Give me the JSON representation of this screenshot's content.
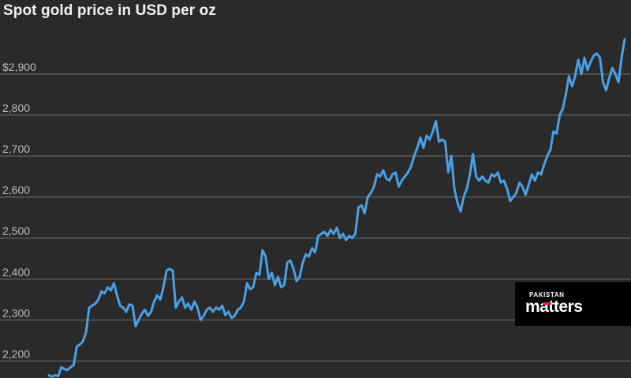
{
  "chart_data": {
    "type": "line",
    "title": "Spot gold price in USD per oz",
    "xlabel": "",
    "ylabel": "",
    "ylim": [
      2150,
      3000
    ],
    "grid": true,
    "y_ticks": [
      2200,
      2300,
      2400,
      2500,
      2600,
      2700,
      2800,
      2900
    ],
    "y_tick_labels": [
      "2,200",
      "2,300",
      "2,400",
      "2,500",
      "2,600",
      "2,700",
      "2,800",
      "$2,900"
    ],
    "colors": {
      "line": "#4a9fe5",
      "background": "#2a2a2a",
      "grid": "#6f6f6f"
    },
    "series": [
      {
        "values": [
          2165,
          2162,
          2165,
          2163,
          2185,
          2180,
          2178,
          2185,
          2190,
          2235,
          2240,
          2248,
          2270,
          2330,
          2335,
          2340,
          2350,
          2370,
          2365,
          2380,
          2372,
          2390,
          2360,
          2335,
          2330,
          2320,
          2338,
          2335,
          2285,
          2300,
          2315,
          2325,
          2310,
          2320,
          2345,
          2360,
          2350,
          2380,
          2420,
          2425,
          2420,
          2330,
          2345,
          2355,
          2330,
          2340,
          2325,
          2345,
          2330,
          2300,
          2310,
          2325,
          2330,
          2320,
          2330,
          2325,
          2335,
          2312,
          2320,
          2305,
          2310,
          2325,
          2330,
          2345,
          2390,
          2375,
          2380,
          2415,
          2410,
          2470,
          2455,
          2400,
          2415,
          2385,
          2405,
          2380,
          2385,
          2440,
          2445,
          2425,
          2395,
          2405,
          2440,
          2460,
          2455,
          2475,
          2465,
          2505,
          2510,
          2515,
          2505,
          2520,
          2510,
          2525,
          2500,
          2510,
          2495,
          2505,
          2500,
          2510,
          2575,
          2580,
          2560,
          2600,
          2610,
          2625,
          2655,
          2650,
          2665,
          2645,
          2640,
          2655,
          2660,
          2625,
          2640,
          2650,
          2660,
          2675,
          2700,
          2720,
          2745,
          2720,
          2750,
          2740,
          2760,
          2785,
          2735,
          2740,
          2735,
          2660,
          2700,
          2620,
          2585,
          2565,
          2600,
          2620,
          2655,
          2705,
          2650,
          2640,
          2650,
          2640,
          2635,
          2655,
          2650,
          2660,
          2635,
          2640,
          2620,
          2590,
          2600,
          2610,
          2635,
          2625,
          2605,
          2630,
          2655,
          2640,
          2660,
          2655,
          2680,
          2700,
          2715,
          2760,
          2755,
          2800,
          2815,
          2850,
          2895,
          2870,
          2895,
          2935,
          2900,
          2940,
          2910,
          2930,
          2945,
          2950,
          2940,
          2880,
          2860,
          2890,
          2915,
          2900,
          2880,
          2940,
          2985
        ]
      }
    ]
  },
  "watermark": {
    "line1": "PAKISTAN",
    "line2": "matters"
  }
}
